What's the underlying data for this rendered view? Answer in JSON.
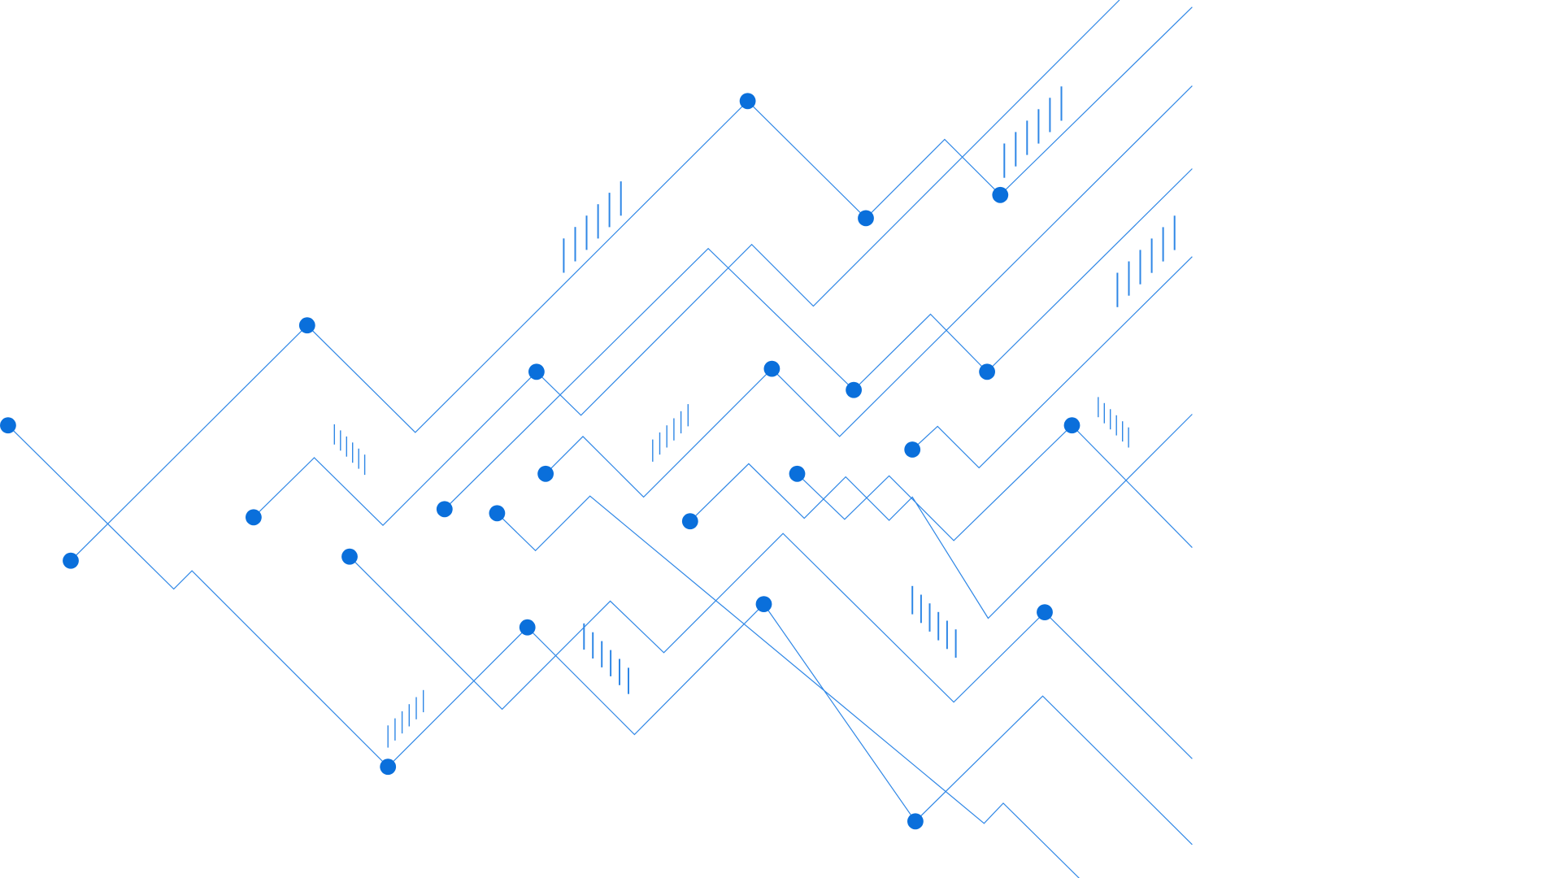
{
  "colors": {
    "background": "#ffffff",
    "accent": "#0a6fdb",
    "line": "#2f87e6"
  }
}
